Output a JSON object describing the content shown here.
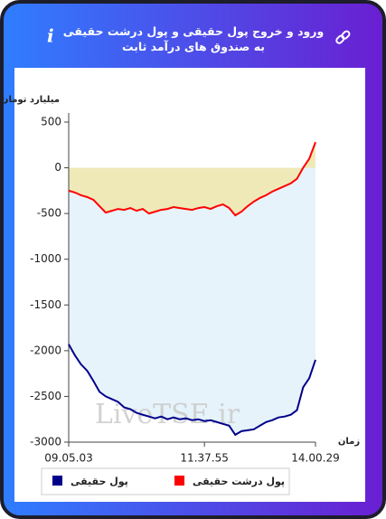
{
  "header": {
    "title": "ورود و خروج پول حقیقی و پول درشت حقیقی به صندوق های درآمد ثابت"
  },
  "chart_data": {
    "type": "line",
    "y_label": "میلیارد تومان",
    "x_label": "زمان",
    "watermark": "LiveTSE.ir",
    "categories": [
      "09.05.03",
      null,
      null,
      null,
      null,
      null,
      null,
      null,
      null,
      null,
      null,
      null,
      null,
      null,
      null,
      null,
      null,
      null,
      null,
      null,
      null,
      null,
      "11.37.55",
      null,
      null,
      null,
      null,
      null,
      null,
      null,
      null,
      null,
      null,
      null,
      null,
      null,
      null,
      null,
      null,
      null,
      "14.00.29"
    ],
    "series": [
      {
        "name": "پول حقیقی",
        "color": "#00008b",
        "fill": "#e6f3fa",
        "values": [
          -1930,
          -2050,
          -2150,
          -2220,
          -2330,
          -2450,
          -2500,
          -2530,
          -2560,
          -2620,
          -2640,
          -2680,
          -2700,
          -2720,
          -2740,
          -2720,
          -2750,
          -2730,
          -2750,
          -2740,
          -2760,
          -2750,
          -2770,
          -2760,
          -2780,
          -2800,
          -2820,
          -2920,
          -2880,
          -2870,
          -2860,
          -2820,
          -2780,
          -2760,
          -2730,
          -2720,
          -2700,
          -2650,
          -2400,
          -2300,
          -2100
        ]
      },
      {
        "name": "پول درشت حقیقی",
        "color": "#ff0000",
        "fill": "#efe9b8",
        "values": [
          -250,
          -270,
          -300,
          -320,
          -350,
          -420,
          -490,
          -470,
          -450,
          -460,
          -440,
          -470,
          -450,
          -500,
          -480,
          -460,
          -450,
          -430,
          -440,
          -450,
          -460,
          -440,
          -430,
          -450,
          -420,
          -400,
          -440,
          -520,
          -480,
          -420,
          -370,
          -330,
          -300,
          -260,
          -230,
          -200,
          -170,
          -120,
          0,
          100,
          280
        ]
      }
    ],
    "ylim": [
      -3000,
      500
    ],
    "yticks": [
      500,
      0,
      -500,
      -1000,
      -1500,
      -2000,
      -2500,
      -3000
    ],
    "grid": false
  }
}
